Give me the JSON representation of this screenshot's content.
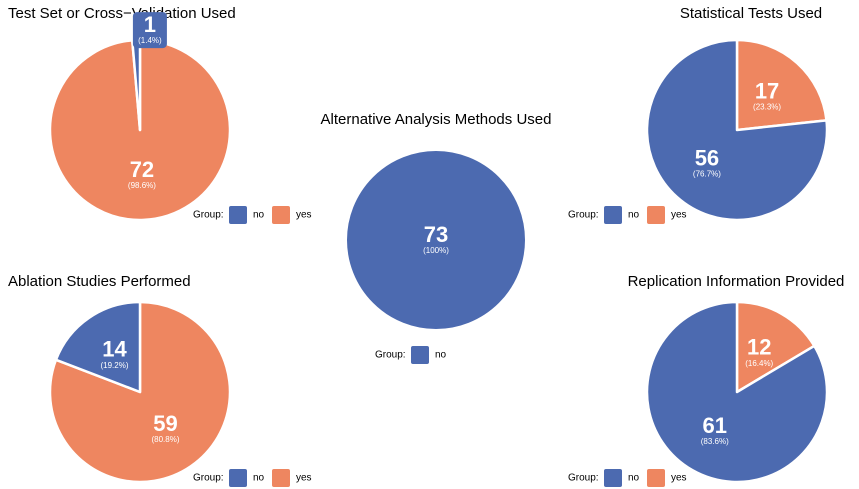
{
  "chart_data": [
    {
      "type": "pie",
      "title": "Test Set or Cross−Validation Used",
      "categories": [
        "no",
        "yes"
      ],
      "values": [
        1,
        72
      ],
      "percent_labels": [
        "(1.4%)",
        "(98.6%)"
      ],
      "colors": [
        "#4c6ab0",
        "#ee8660"
      ],
      "legend_title": "Group:"
    },
    {
      "type": "pie",
      "title": "Statistical Tests Used",
      "categories": [
        "no",
        "yes"
      ],
      "values": [
        56,
        17
      ],
      "percent_labels": [
        "(76.7%)",
        "(23.3%)"
      ],
      "colors": [
        "#4c6ab0",
        "#ee8660"
      ],
      "legend_title": "Group:"
    },
    {
      "type": "pie",
      "title": "Alternative Analysis Methods Used",
      "categories": [
        "no"
      ],
      "values": [
        73
      ],
      "percent_labels": [
        "(100%)"
      ],
      "colors": [
        "#4c6ab0"
      ],
      "legend_title": "Group:"
    },
    {
      "type": "pie",
      "title": "Ablation Studies Performed",
      "categories": [
        "no",
        "yes"
      ],
      "values": [
        14,
        59
      ],
      "percent_labels": [
        "(19.2%)",
        "(80.8%)"
      ],
      "colors": [
        "#4c6ab0",
        "#ee8660"
      ],
      "legend_title": "Group:"
    },
    {
      "type": "pie",
      "title": "Replication Information Provided",
      "categories": [
        "no",
        "yes"
      ],
      "values": [
        61,
        12
      ],
      "percent_labels": [
        "(83.6%)",
        "(16.4%)"
      ],
      "colors": [
        "#4c6ab0",
        "#ee8660"
      ],
      "legend_title": "Group:"
    }
  ]
}
